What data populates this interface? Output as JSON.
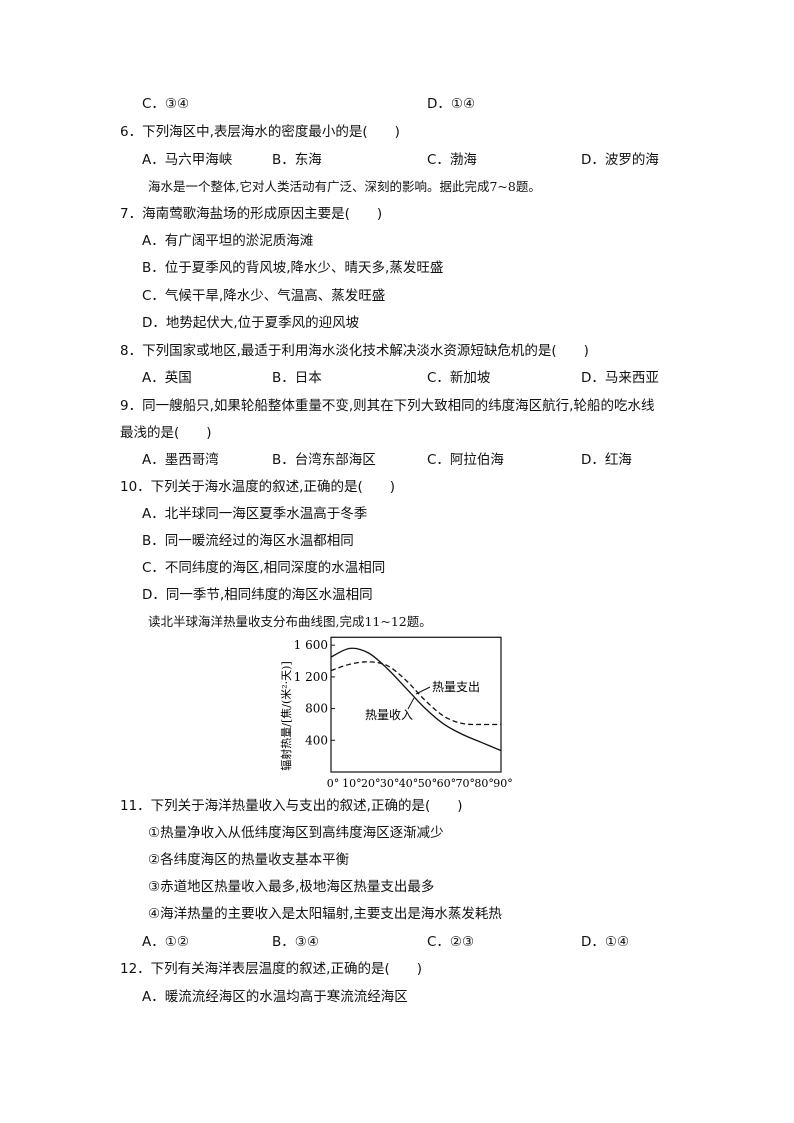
{
  "q5": {
    "options": [
      "C．③④",
      "D．①④"
    ]
  },
  "q6": {
    "stem": "6．下列海区中,表层海水的密度最小的是(　　)",
    "options": [
      "A．马六甲海峡",
      "B．东海",
      "C．渤海",
      "D．波罗的海"
    ]
  },
  "intro_7_8": "海水是一个整体,它对人类活动有广泛、深刻的影响。据此完成7~8题。",
  "q7": {
    "stem": "7．海南莺歌海盐场的形成原因主要是(　　)",
    "options": [
      "A．有广阔平坦的淤泥质海滩",
      "B．位于夏季风的背风坡,降水少、晴天多,蒸发旺盛",
      "C．气候干旱,降水少、气温高、蒸发旺盛",
      "D．地势起伏大,位于夏季风的迎风坡"
    ]
  },
  "q8": {
    "stem": "8．下列国家或地区,最适于利用海水淡化技术解决淡水资源短缺危机的是(　　)",
    "options": [
      "A．英国",
      "B．日本",
      "C．新加坡",
      "D．马来西亚"
    ]
  },
  "q9": {
    "stem_line1": "9．同一艘船只,如果轮船整体重量不变,则其在下列大致相同的纬度海区航行,轮船的吃水线",
    "stem_line2": "最浅的是(　　)",
    "options": [
      "A．墨西哥湾",
      "B．台湾东部海区",
      "C．阿拉伯海",
      "D．红海"
    ]
  },
  "q10": {
    "stem": "10．下列关于海水温度的叙述,正确的是(　　)",
    "options": [
      "A．北半球同一海区夏季水温高于冬季",
      "B．同一暖流经过的海区水温都相同",
      "C．不同纬度的海区,相同深度的水温相同",
      "D．同一季节,相同纬度的海区水温相同"
    ]
  },
  "intro_11_12": "读北半球海洋热量收支分布曲线图,完成11~12题。",
  "chart_data": {
    "type": "line",
    "ylabel": "辐射热量/[焦/(米²·天)]",
    "x": [
      0,
      10,
      20,
      30,
      40,
      50,
      60,
      70,
      80,
      90
    ],
    "xtick_labels": [
      "0°",
      "10°",
      "20°",
      "30°",
      "40°",
      "50°",
      "60°",
      "70°",
      "80°",
      "90°"
    ],
    "ytick_labels": [
      "1 600",
      "1 200",
      "800",
      "400"
    ],
    "yticks": [
      1600,
      1200,
      800,
      400
    ],
    "xlim": [
      0,
      90
    ],
    "ylim": [
      0,
      1700
    ],
    "series": [
      {
        "name": "热量收入",
        "style": "solid",
        "values": [
          1450,
          1560,
          1500,
          1300,
          1050,
          800,
          600,
          470,
          370,
          270
        ]
      },
      {
        "name": "热量支出",
        "style": "dashed",
        "values": [
          1280,
          1360,
          1390,
          1340,
          1150,
          900,
          700,
          610,
          600,
          600
        ]
      }
    ],
    "grid": false
  },
  "q11": {
    "stem": "11．下列关于海洋热量收入与支出的叙述,正确的是(　　)",
    "statements": [
      "①热量净收入从低纬度海区到高纬度海区逐渐减少",
      "②各纬度海区的热量收支基本平衡",
      "③赤道地区热量收入最多,极地海区热量支出最多",
      "④海洋热量的主要收入是太阳辐射,主要支出是海水蒸发耗热"
    ],
    "options": [
      "A．①②",
      "B．③④",
      "C．②③",
      "D．①④"
    ]
  },
  "q12": {
    "stem": "12．下列有关海洋表层温度的叙述,正确的是(　　)",
    "options": [
      "A．暖流流经海区的水温均高于寒流流经海区"
    ]
  }
}
